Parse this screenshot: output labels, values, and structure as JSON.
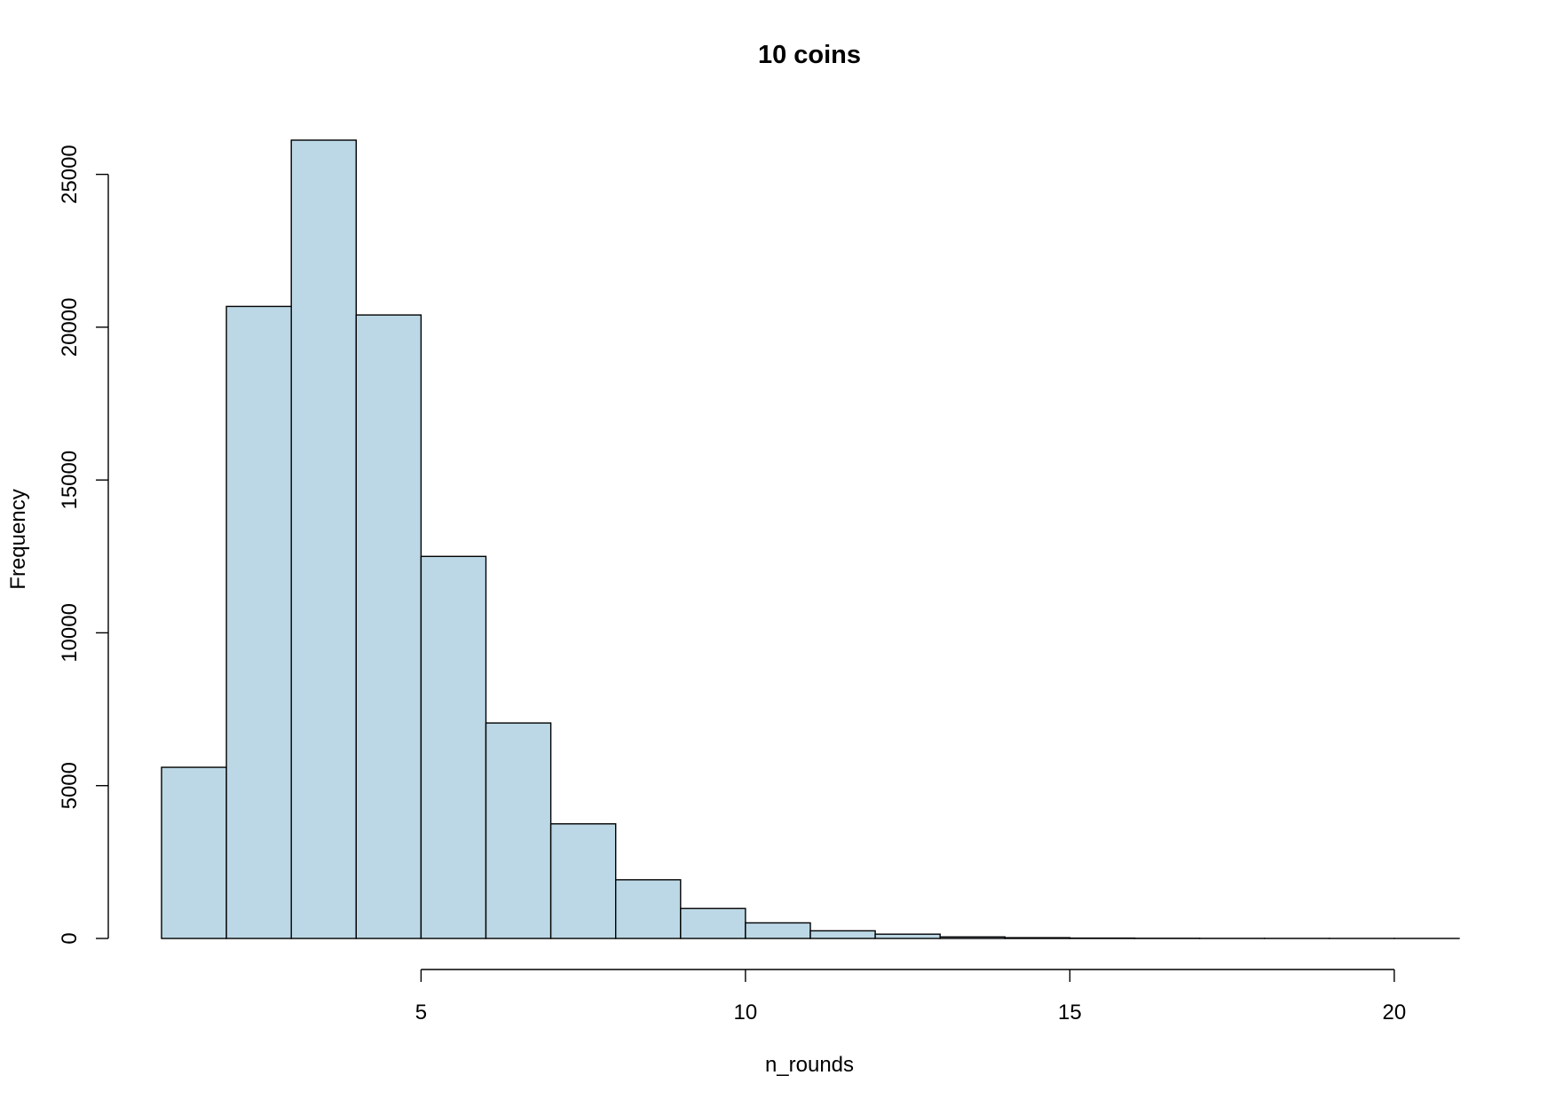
{
  "chart_data": {
    "type": "bar",
    "title": "10 coins",
    "xlabel": "n_rounds",
    "ylabel": "Frequency",
    "bins": [
      [
        1,
        2
      ],
      [
        2,
        3
      ],
      [
        3,
        4
      ],
      [
        4,
        5
      ],
      [
        5,
        6
      ],
      [
        6,
        7
      ],
      [
        7,
        8
      ],
      [
        8,
        9
      ],
      [
        9,
        10
      ],
      [
        10,
        11
      ],
      [
        11,
        12
      ],
      [
        12,
        13
      ],
      [
        13,
        14
      ],
      [
        14,
        15
      ],
      [
        15,
        16
      ],
      [
        16,
        17
      ],
      [
        17,
        18
      ],
      [
        18,
        19
      ],
      [
        19,
        20
      ],
      [
        20,
        21
      ]
    ],
    "values": [
      5600,
      20680,
      26120,
      20400,
      12500,
      7050,
      3750,
      1920,
      980,
      510,
      250,
      140,
      50,
      25,
      12,
      6,
      3,
      2,
      1,
      1
    ],
    "xlim": [
      1,
      21
    ],
    "ylim": [
      0,
      26120
    ],
    "x_ticks": [
      5,
      10,
      15,
      20
    ],
    "y_ticks": [
      0,
      5000,
      10000,
      15000,
      20000,
      25000
    ],
    "grid": false,
    "bar_color": "#bcd8e6"
  }
}
